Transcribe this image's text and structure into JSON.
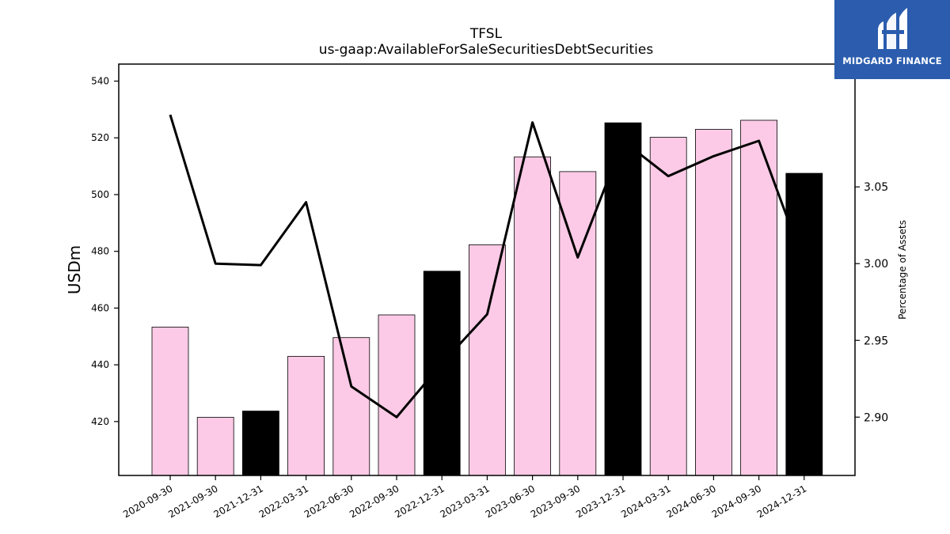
{
  "chart_data": {
    "type": "bar",
    "title": "TFSL",
    "subtitle": "us-gaap:AvailableForSaleSecuritiesDebtSecurities",
    "ylabel": "USDm",
    "ylabel_right": "Percentage of Assets",
    "categories": [
      "2020-09-30",
      "2021-09-30",
      "2021-12-31",
      "2022-03-31",
      "2022-06-30",
      "2022-09-30",
      "2022-12-31",
      "2023-03-31",
      "2023-06-30",
      "2023-09-30",
      "2023-12-31",
      "2024-03-31",
      "2024-06-30",
      "2024-09-30",
      "2024-12-31"
    ],
    "bar_values": [
      453.3,
      421.5,
      423.7,
      443.0,
      449.6,
      457.6,
      473.0,
      482.3,
      513.3,
      508.1,
      525.3,
      520.2,
      523.0,
      526.2,
      507.5
    ],
    "bar_colors": [
      "#fccae6",
      "#fccae6",
      "#000000",
      "#fccae6",
      "#fccae6",
      "#fccae6",
      "#000000",
      "#fccae6",
      "#fccae6",
      "#fccae6",
      "#000000",
      "#fccae6",
      "#fccae6",
      "#fccae6",
      "#000000"
    ],
    "line_values": [
      3.097,
      3.0,
      2.999,
      3.04,
      2.92,
      2.9,
      2.935,
      2.967,
      3.092,
      3.004,
      3.08,
      3.057,
      3.07,
      3.08,
      3.0
    ],
    "ylim": [
      401,
      546
    ],
    "yticks": [
      420,
      440,
      460,
      480,
      500,
      520,
      540
    ],
    "ylim_right": [
      2.862,
      3.13
    ],
    "yticks_right": [
      2.9,
      2.95,
      3.0,
      3.05
    ]
  },
  "logo": {
    "text": "MIDGARD FINANCE"
  }
}
